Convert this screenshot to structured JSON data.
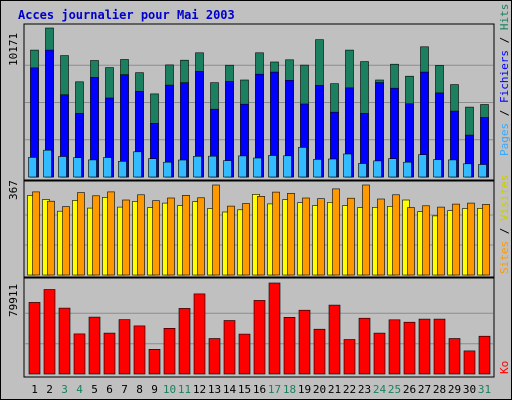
{
  "chart_data": [
    {
      "type": "bar",
      "title": "Acces journalier pour Mai 2003",
      "ymax_label": "10171",
      "ymax": 10171,
      "legend": {
        "pages": "Pages",
        "sep1": " / ",
        "files": "Fichiers",
        "sep2": " / ",
        "hits": "Hits"
      },
      "series": [
        {
          "name": "Hits",
          "color": "#1a8060",
          "values": [
            8660,
            10171,
            8290,
            6500,
            7950,
            7470,
            8020,
            7120,
            5670,
            7650,
            7970,
            8480,
            6440,
            7630,
            6620,
            8480,
            7850,
            8000,
            7640,
            9370,
            6370,
            8660,
            7880,
            6620,
            7700,
            6880,
            8890,
            7620,
            6310,
            4770,
            4950
          ]
        },
        {
          "name": "Fichiers",
          "color": "#0000ff",
          "values": [
            7450,
            8660,
            5610,
            4340,
            6800,
            5390,
            6980,
            5850,
            3660,
            6270,
            6440,
            7210,
            4630,
            6520,
            4970,
            7020,
            7160,
            6600,
            4980,
            6250,
            4420,
            6080,
            4340,
            6450,
            6060,
            5000,
            7160,
            5740,
            4500,
            2860,
            4060
          ]
        },
        {
          "name": "Pages",
          "color": "#33bbff",
          "values": [
            1340,
            1830,
            1400,
            1320,
            1170,
            1330,
            1070,
            1720,
            1250,
            1010,
            1160,
            1410,
            1420,
            1120,
            1440,
            1300,
            1470,
            1450,
            2020,
            1200,
            1230,
            1570,
            920,
            1100,
            1250,
            1010,
            1520,
            1190,
            1170,
            900,
            850
          ]
        }
      ]
    },
    {
      "type": "bar",
      "ymax_label": "367",
      "ymax": 367,
      "legend": {
        "sites": "Sites",
        "sep": " / ",
        "visits": "Visites"
      },
      "series": [
        {
          "name": "Visites",
          "color": "#ff9900",
          "values": [
            339,
            301,
            279,
            336,
            323,
            339,
            306,
            327,
            303,
            314,
            325,
            315,
            367,
            281,
            291,
            321,
            338,
            333,
            314,
            311,
            351,
            313,
            367,
            310,
            327,
            275,
            282,
            277,
            289,
            293,
            288
          ]
        },
        {
          "name": "Sites",
          "color": "#ffff00",
          "values": [
            324,
            308,
            260,
            304,
            273,
            317,
            277,
            300,
            275,
            293,
            283,
            299,
            271,
            257,
            266,
            329,
            290,
            307,
            295,
            283,
            296,
            283,
            275,
            276,
            280,
            306,
            258,
            241,
            262,
            271,
            272
          ]
        }
      ]
    },
    {
      "type": "bar",
      "ymax_label": "79911",
      "ymax": 79911,
      "legend": {
        "ko": "Ko"
      },
      "series": [
        {
          "name": "Ko",
          "color": "#ff0000",
          "values": [
            62900,
            74200,
            57900,
            35200,
            50000,
            35900,
            47800,
            42200,
            21700,
            40100,
            57600,
            70300,
            31200,
            47000,
            35000,
            64600,
            79911,
            49800,
            56000,
            39300,
            60500,
            30300,
            49000,
            35900,
            47600,
            45500,
            48200,
            48200,
            31200,
            20300,
            33200
          ]
        }
      ]
    }
  ],
  "days": [
    "1",
    "2",
    "3",
    "4",
    "5",
    "6",
    "7",
    "8",
    "9",
    "10",
    "11",
    "12",
    "13",
    "14",
    "15",
    "16",
    "17",
    "18",
    "19",
    "20",
    "21",
    "22",
    "23",
    "24",
    "25",
    "26",
    "27",
    "28",
    "29",
    "30",
    "31"
  ],
  "weekend_days": [
    "3",
    "4",
    "10",
    "11",
    "17",
    "18",
    "24",
    "25",
    "31"
  ]
}
